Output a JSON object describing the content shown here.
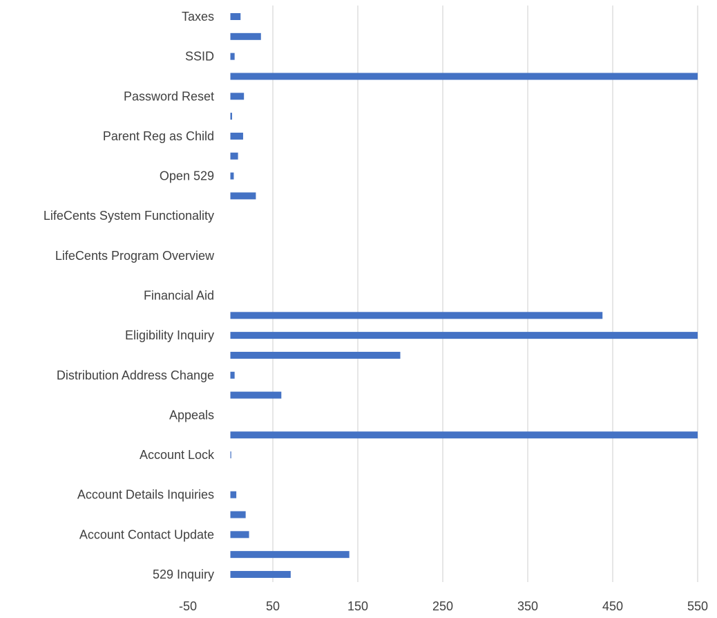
{
  "chart_data": {
    "type": "bar",
    "orientation": "horizontal",
    "title": "",
    "xlabel": "",
    "ylabel": "",
    "xlim": [
      -50,
      550
    ],
    "x_ticks": [
      -50,
      50,
      150,
      250,
      350,
      450,
      550
    ],
    "grid": "vertical",
    "legend": "none",
    "bar_color": "#4472c4",
    "categories": [
      "529 Inquiry",
      "",
      "Account Contact Update",
      "",
      "Account Details Inquiries",
      "",
      "Account Lock",
      "",
      "Appeals",
      "",
      "Distribution Address Change",
      "",
      "Eligibility Inquiry",
      "",
      "Financial Aid",
      "",
      "LifeCents Program Overview",
      "",
      "LifeCents System Functionality",
      "",
      "Open 529",
      "",
      "Parent Reg as Child",
      "",
      "Password Reset",
      "",
      "SSID",
      "",
      "Taxes"
    ],
    "values": [
      71,
      140,
      22,
      18,
      7,
      0,
      1,
      550,
      0,
      60,
      5,
      200,
      550,
      438,
      0,
      0,
      0,
      0,
      0,
      30,
      4,
      9,
      15,
      2,
      16,
      550,
      5,
      36,
      12
    ]
  }
}
